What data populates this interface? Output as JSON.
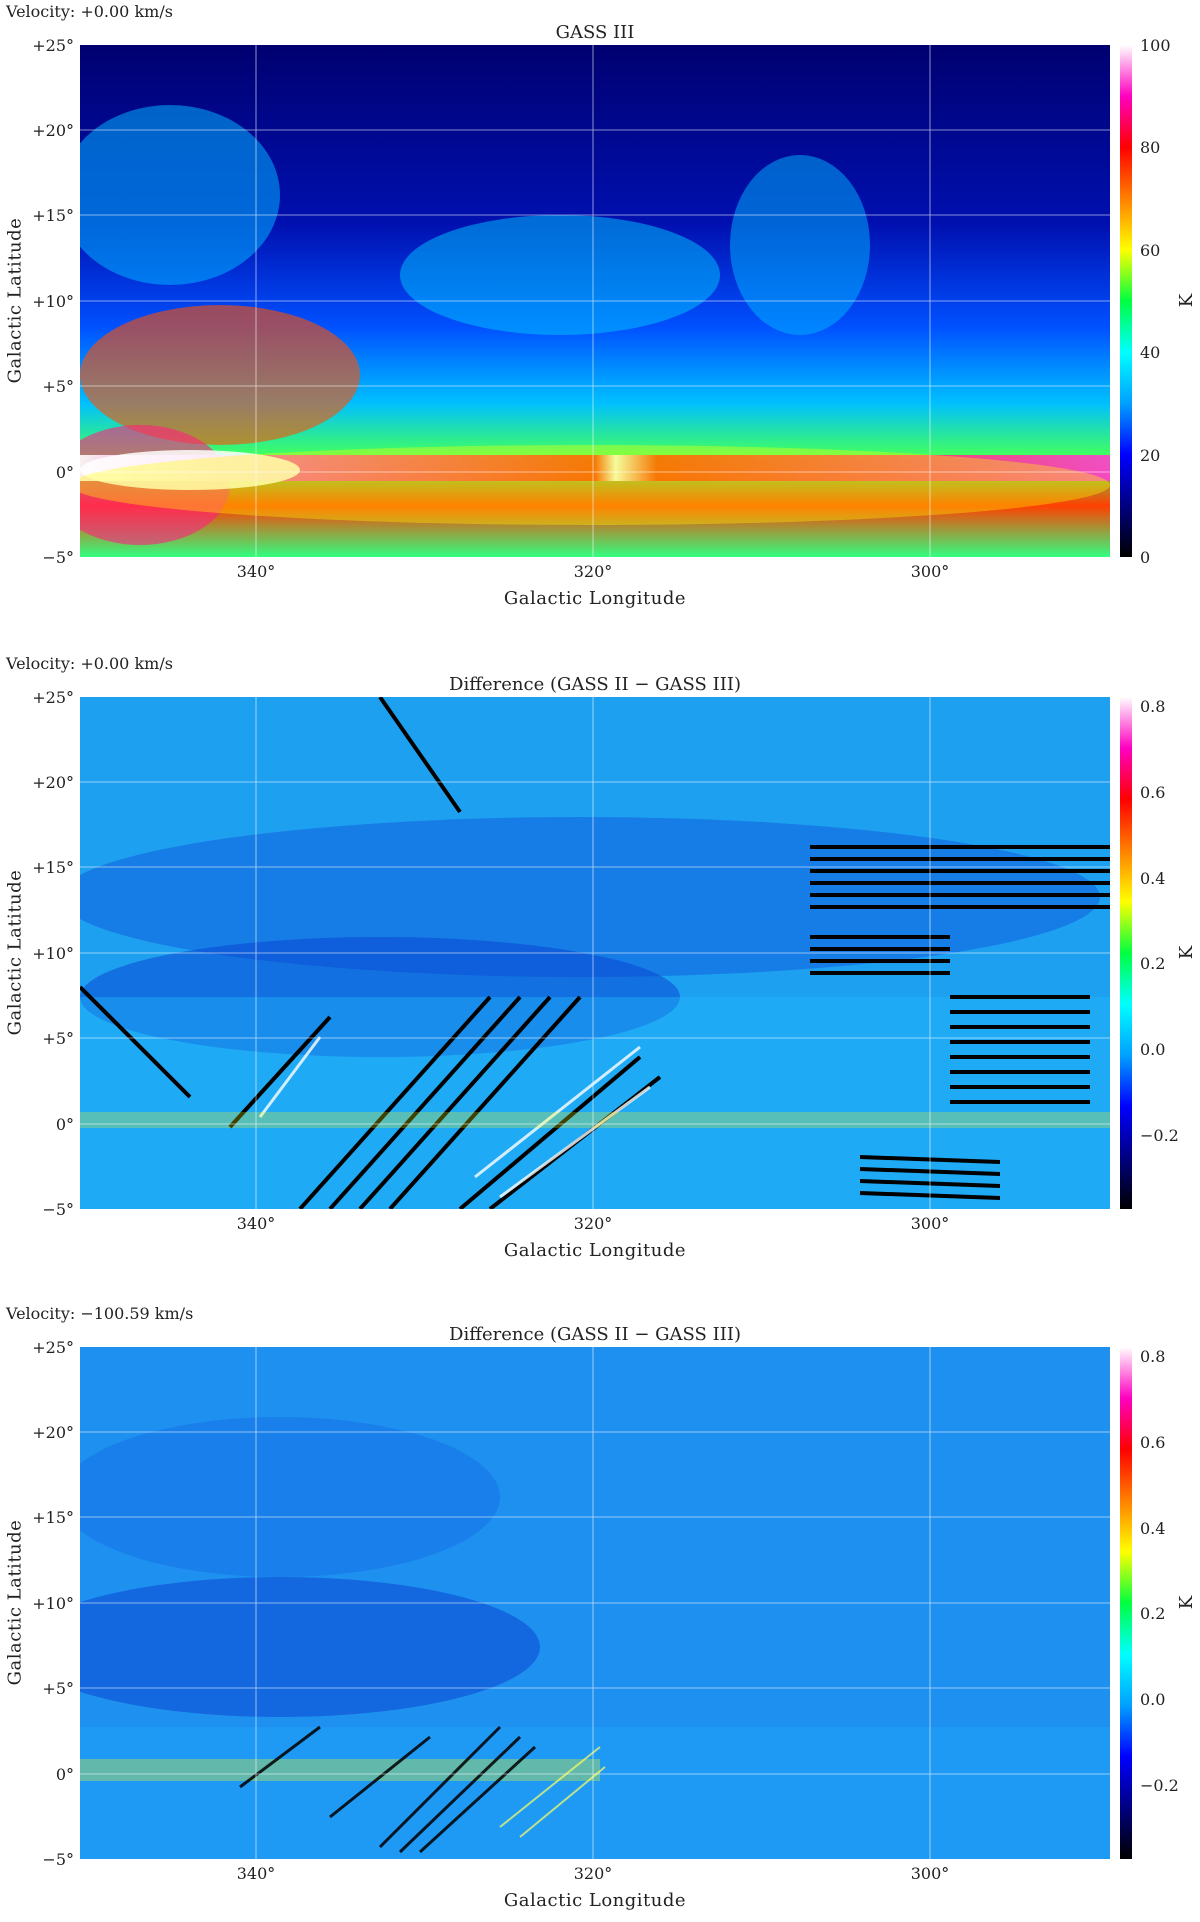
{
  "panels": [
    {
      "velocity": "Velocity:  +0.00  km/s",
      "title": "GASS III",
      "ylabel": "Galactic  Latitude",
      "xlabel": "Galactic  Longitude",
      "yticks": [
        "+25°",
        "+20°",
        "+15°",
        "+10°",
        "+5°",
        "0°",
        "−5°"
      ],
      "xticks": [
        "340°",
        "320°",
        "300°"
      ],
      "cbar_ticks": [
        "100",
        "80",
        "60",
        "40",
        "20",
        "0"
      ],
      "cbar_unit": "K"
    },
    {
      "velocity": "Velocity:  +0.00  km/s",
      "title": "Difference  (GASS II  −  GASS III)",
      "ylabel": "Galactic  Latitude",
      "xlabel": "Galactic  Longitude",
      "yticks": [
        "+25°",
        "+20°",
        "+15°",
        "+10°",
        "+5°",
        "0°",
        "−5°"
      ],
      "xticks": [
        "340°",
        "320°",
        "300°"
      ],
      "cbar_ticks": [
        "0.8",
        "0.6",
        "0.4",
        "0.2",
        "0.0",
        "−0.2"
      ],
      "cbar_unit": "K"
    },
    {
      "velocity": "Velocity:  −100.59  km/s",
      "title": "Difference  (GASS II  −  GASS III)",
      "ylabel": "Galactic  Latitude",
      "xlabel": "Galactic  Longitude",
      "yticks": [
        "+25°",
        "+20°",
        "+15°",
        "+10°",
        "+5°",
        "0°",
        "−5°"
      ],
      "xticks": [
        "340°",
        "320°",
        "300°"
      ],
      "cbar_ticks": [
        "0.8",
        "0.6",
        "0.4",
        "0.2",
        "0.0",
        "−0.2"
      ],
      "cbar_unit": "K"
    }
  ],
  "colors": {
    "colormap": [
      "#000000",
      "#000080",
      "#0000ff",
      "#00a0ff",
      "#00ffff",
      "#00ff40",
      "#ffff00",
      "#ff8000",
      "#ff0000",
      "#ff00c0",
      "#ffffff"
    ],
    "grid": "#ffffff"
  }
}
